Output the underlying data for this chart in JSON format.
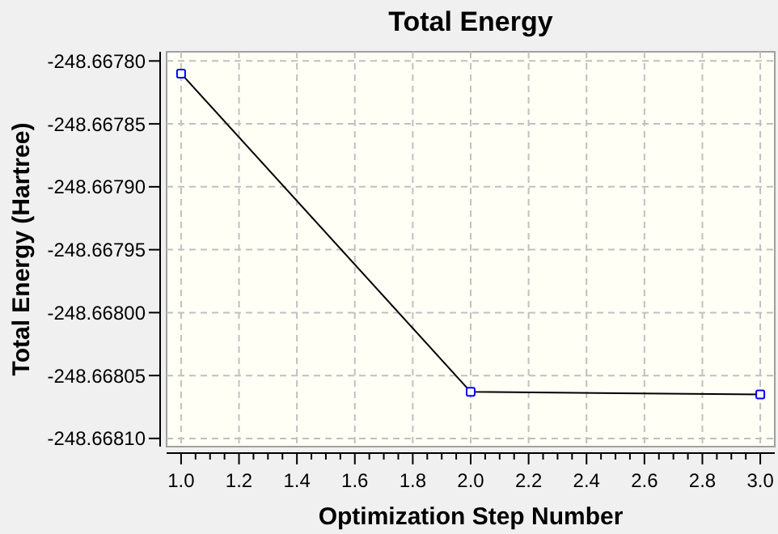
{
  "chart_data": {
    "type": "line",
    "title": "Total Energy",
    "xlabel": "Optimization Step Number",
    "ylabel": "Total Energy (Hartree)",
    "x": [
      1,
      2,
      3
    ],
    "series": [
      {
        "color": "#000000",
        "values": [
          -248.66781,
          -248.668063,
          -248.668065
        ]
      }
    ],
    "xlim": [
      0.95,
      3.05
    ],
    "xticks": [
      {
        "value": 1,
        "label": "1.0"
      },
      {
        "value": 1.05,
        "label": null
      },
      {
        "value": 1.1,
        "label": null
      },
      {
        "value": 1.15,
        "label": null
      },
      {
        "value": 1.2,
        "label": "1.2"
      },
      {
        "value": 1.25,
        "label": null
      },
      {
        "value": 1.3,
        "label": null
      },
      {
        "value": 1.35,
        "label": null
      },
      {
        "value": 1.4,
        "label": "1.4"
      },
      {
        "value": 1.45,
        "label": null
      },
      {
        "value": 1.5,
        "label": null
      },
      {
        "value": 1.55,
        "label": null
      },
      {
        "value": 1.6,
        "label": "1.6"
      },
      {
        "value": 1.65,
        "label": null
      },
      {
        "value": 1.7,
        "label": null
      },
      {
        "value": 1.75,
        "label": null
      },
      {
        "value": 1.8,
        "label": "1.8"
      },
      {
        "value": 1.85,
        "label": null
      },
      {
        "value": 1.9,
        "label": null
      },
      {
        "value": 1.95,
        "label": null
      },
      {
        "value": 2,
        "label": "2.0"
      },
      {
        "value": 2.05,
        "label": null
      },
      {
        "value": 2.1,
        "label": null
      },
      {
        "value": 2.15,
        "label": null
      },
      {
        "value": 2.2,
        "label": "2.2"
      },
      {
        "value": 2.25,
        "label": null
      },
      {
        "value": 2.3,
        "label": null
      },
      {
        "value": 2.35,
        "label": null
      },
      {
        "value": 2.4,
        "label": "2.4"
      },
      {
        "value": 2.45,
        "label": null
      },
      {
        "value": 2.5,
        "label": null
      },
      {
        "value": 2.55,
        "label": null
      },
      {
        "value": 2.6,
        "label": "2.6"
      },
      {
        "value": 2.65,
        "label": null
      },
      {
        "value": 2.7,
        "label": null
      },
      {
        "value": 2.75,
        "label": null
      },
      {
        "value": 2.8,
        "label": "2.8"
      },
      {
        "value": 2.85,
        "label": null
      },
      {
        "value": 2.9,
        "label": null
      },
      {
        "value": 2.95,
        "label": null
      },
      {
        "value": 3,
        "label": "3.0"
      }
    ],
    "ylim": [
      -248.6681065,
      -248.6677927
    ],
    "yticks": [
      {
        "value": -248.6678,
        "label": "-248.66780"
      },
      {
        "value": -248.66785,
        "label": "-248.66785"
      },
      {
        "value": -248.6679,
        "label": "-248.66790"
      },
      {
        "value": -248.66795,
        "label": "-248.66795"
      },
      {
        "value": -248.668,
        "label": "-248.66800"
      },
      {
        "value": -248.66805,
        "label": "-248.66805"
      },
      {
        "value": -248.6681,
        "label": "-248.66810"
      }
    ],
    "grid": true,
    "marker": "square",
    "line_style": "solid"
  }
}
